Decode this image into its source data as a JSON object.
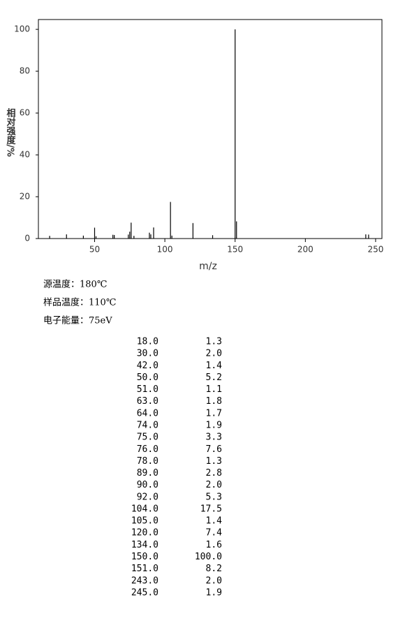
{
  "chart_data": {
    "type": "stick",
    "xlabel": "m/z",
    "ylabel": "相对强度/%",
    "x": [
      18,
      30,
      42,
      50,
      51,
      63,
      64,
      74,
      75,
      76,
      78,
      89,
      90,
      92,
      104,
      105,
      120,
      134,
      150,
      151,
      243,
      245
    ],
    "values": [
      1.3,
      2.0,
      1.4,
      5.2,
      1.1,
      1.8,
      1.7,
      1.9,
      3.3,
      7.6,
      1.3,
      2.8,
      2.0,
      5.3,
      17.5,
      1.4,
      7.4,
      1.6,
      100.0,
      8.2,
      2.0,
      1.9
    ],
    "color": "#000000",
    "xlim": [
      10,
      254.5
    ],
    "xticks": [
      50,
      100,
      150,
      200,
      250
    ],
    "ylim": [
      0,
      104.7
    ],
    "yticks": [
      0,
      20,
      40,
      60,
      80,
      100
    ]
  },
  "conditions": [
    "源温度：180℃",
    "样品温度：110℃",
    "电子能量：75eV"
  ],
  "table": {
    "rows": [
      [
        "18.0",
        "1.3"
      ],
      [
        "30.0",
        "2.0"
      ],
      [
        "42.0",
        "1.4"
      ],
      [
        "50.0",
        "5.2"
      ],
      [
        "51.0",
        "1.1"
      ],
      [
        "63.0",
        "1.8"
      ],
      [
        "64.0",
        "1.7"
      ],
      [
        "74.0",
        "1.9"
      ],
      [
        "75.0",
        "3.3"
      ],
      [
        "76.0",
        "7.6"
      ],
      [
        "78.0",
        "1.3"
      ],
      [
        "89.0",
        "2.8"
      ],
      [
        "90.0",
        "2.0"
      ],
      [
        "92.0",
        "5.3"
      ],
      [
        "104.0",
        "17.5"
      ],
      [
        "105.0",
        "1.4"
      ],
      [
        "120.0",
        "7.4"
      ],
      [
        "134.0",
        "1.6"
      ],
      [
        "150.0",
        "100.0"
      ],
      [
        "151.0",
        "8.2"
      ],
      [
        "243.0",
        "2.0"
      ],
      [
        "245.0",
        "1.9"
      ]
    ]
  }
}
